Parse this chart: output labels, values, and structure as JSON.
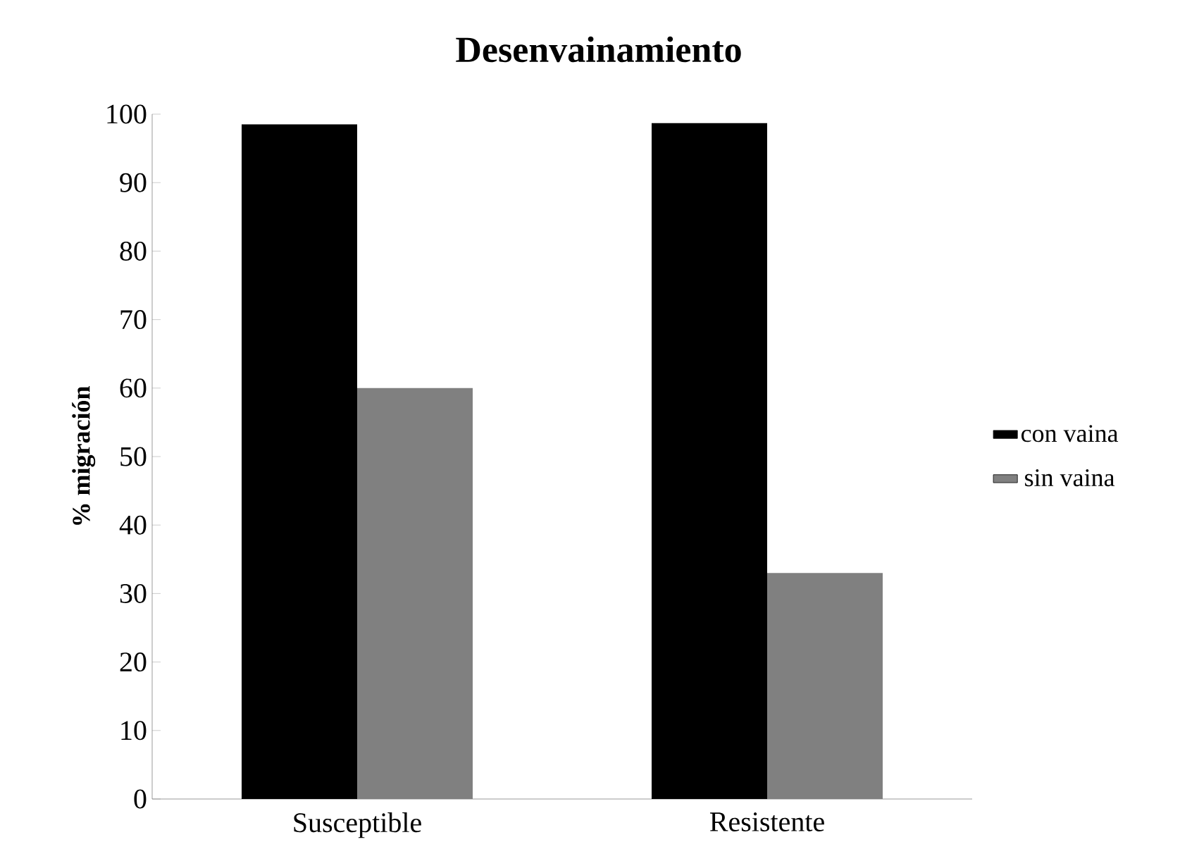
{
  "chart_data": {
    "type": "bar",
    "title": "Desenvainamiento",
    "ylabel": "% migración",
    "categories": [
      "Susceptible",
      "Resistente"
    ],
    "series": [
      {
        "name": "con vaina",
        "color": "#000000",
        "values": [
          98.5,
          98.7
        ]
      },
      {
        "name": "sin vaina",
        "color": "#808080",
        "values": [
          60,
          33
        ]
      }
    ],
    "ylim": [
      0,
      100
    ],
    "yticks": [
      0,
      10,
      20,
      30,
      40,
      50,
      60,
      70,
      80,
      90,
      100
    ],
    "grid": false,
    "legend": "right"
  }
}
